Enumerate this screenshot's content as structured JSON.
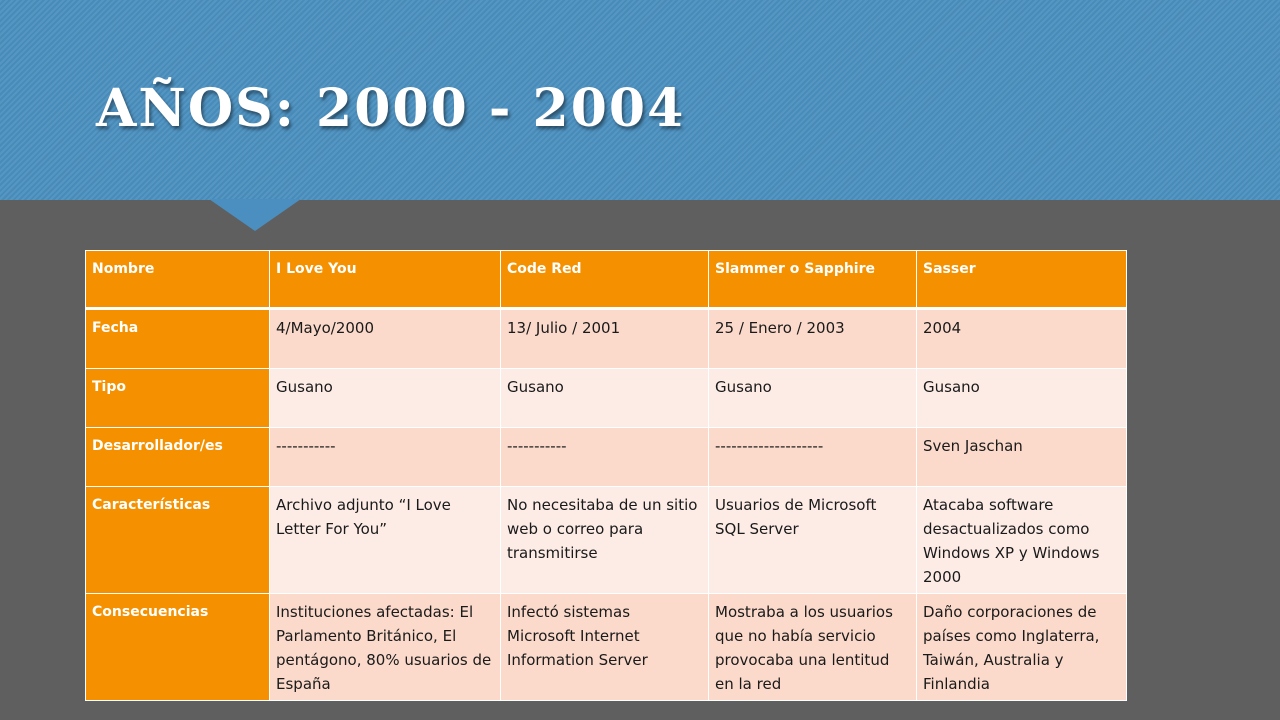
{
  "slide": {
    "title": "AÑOS: 2000 - 2004"
  },
  "colors": {
    "header_bg": "#4a8fbf",
    "body_bg": "#5f5f5f",
    "table_header": "#f59100",
    "row_light": "#fdece6",
    "row_dark": "#fbdacb"
  },
  "table": {
    "headers": [
      "Nombre",
      "I Love You",
      "Code Red",
      "Slammer o Sapphire",
      "Sasser"
    ],
    "rows": [
      {
        "label": "Fecha",
        "cells": [
          "4/Mayo/2000",
          "13/ Julio / 2001",
          "25 / Enero / 2003",
          "2004"
        ]
      },
      {
        "label": "Tipo",
        "cells": [
          "Gusano",
          "Gusano",
          "Gusano",
          "Gusano"
        ]
      },
      {
        "label": "Desarrollador/es",
        "cells": [
          "-----------",
          "-----------",
          "--------------------",
          "Sven Jaschan"
        ]
      },
      {
        "label": "Características",
        "cells": [
          "Archivo adjunto “I Love Letter For You”",
          "No necesitaba de un sitio web o correo para transmitirse",
          "Usuarios de Microsoft SQL Server",
          "Atacaba software desactualizados como Windows XP y Windows 2000"
        ]
      },
      {
        "label": "Consecuencias",
        "cells": [
          "Instituciones afectadas: El Parlamento Británico, El pentágono, 80% usuarios de España",
          "Infectó sistemas Microsoft Internet Information Server",
          "Mostraba a los usuarios que no había servicio provocaba una lentitud en la red",
          "Daño corporaciones de países como Inglaterra, Taiwán, Australia y Finlandia"
        ]
      }
    ]
  }
}
